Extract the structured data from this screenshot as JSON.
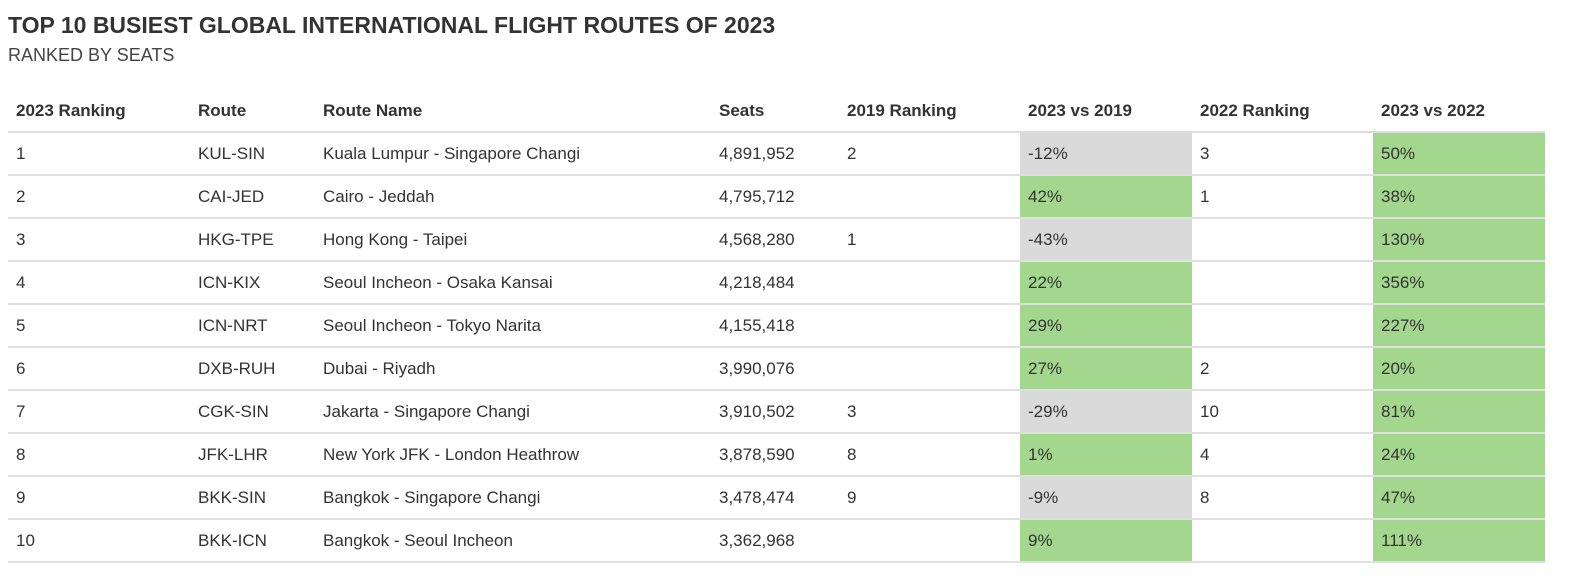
{
  "title": "TOP 10 BUSIEST GLOBAL INTERNATIONAL FLIGHT ROUTES OF 2023",
  "subtitle": "RANKED BY SEATS",
  "colors": {
    "positive": "#a3d78e",
    "negative": "#dadada"
  },
  "chart_data": {
    "type": "table",
    "columns": [
      "2023 Ranking",
      "Route",
      "Route Name",
      "Seats",
      "2019 Ranking",
      "2023 vs 2019",
      "2022 Ranking",
      "2023 vs 2022"
    ],
    "rows": [
      [
        "1",
        "KUL-SIN",
        "Kuala Lumpur - Singapore Changi",
        "4,891,952",
        "2",
        "-12%",
        "3",
        "50%"
      ],
      [
        "2",
        "CAI-JED",
        "Cairo - Jeddah",
        "4,795,712",
        "",
        "42%",
        "1",
        "38%"
      ],
      [
        "3",
        "HKG-TPE",
        "Hong Kong - Taipei",
        "4,568,280",
        "1",
        "-43%",
        "",
        "130%"
      ],
      [
        "4",
        "ICN-KIX",
        "Seoul Incheon - Osaka Kansai",
        "4,218,484",
        "",
        "22%",
        "",
        "356%"
      ],
      [
        "5",
        "ICN-NRT",
        "Seoul Incheon - Tokyo Narita",
        "4,155,418",
        "",
        "29%",
        "",
        "227%"
      ],
      [
        "6",
        "DXB-RUH",
        "Dubai - Riyadh",
        "3,990,076",
        "",
        "27%",
        "2",
        "20%"
      ],
      [
        "7",
        "CGK-SIN",
        "Jakarta - Singapore Changi",
        "3,910,502",
        "3",
        "-29%",
        "10",
        "81%"
      ],
      [
        "8",
        "JFK-LHR",
        "New York JFK - London Heathrow",
        "3,878,590",
        "8",
        "1%",
        "4",
        "24%"
      ],
      [
        "9",
        "BKK-SIN",
        "Bangkok - Singapore Changi",
        "3,478,474",
        "9",
        "-9%",
        "8",
        "47%"
      ],
      [
        "10",
        "BKK-ICN",
        "Bangkok - Seoul Incheon",
        "3,362,968",
        "",
        "9%",
        "",
        "111%"
      ]
    ]
  }
}
